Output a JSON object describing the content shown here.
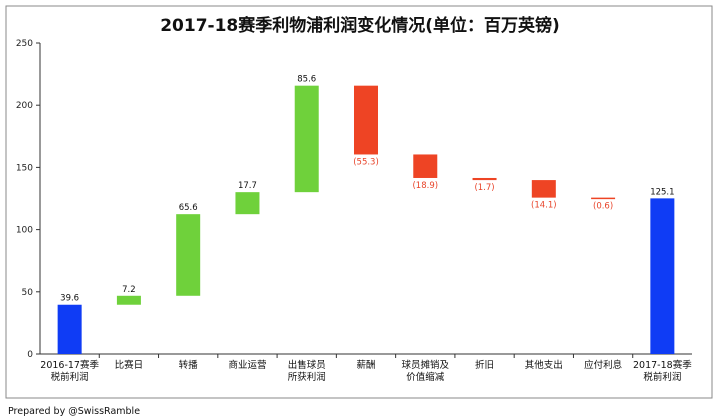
{
  "chart_data": {
    "type": "waterfall",
    "title": "2017-18赛季利物浦利润变化情况(单位：百万英镑)",
    "xlabel": "",
    "ylabel": "",
    "ylim": [
      0,
      250
    ],
    "yticks": [
      0,
      50,
      100,
      150,
      200,
      250
    ],
    "grid": false,
    "legend": "none",
    "colors": {
      "total": "#0f3cf5",
      "increase": "#6fd13b",
      "decrease": "#ee4424"
    },
    "categories": [
      [
        "2016-17赛季",
        "税前利润"
      ],
      [
        "比赛日"
      ],
      [
        "转播"
      ],
      [
        "商业运营"
      ],
      [
        "出售球员",
        "所获利润"
      ],
      [
        "薪酬"
      ],
      [
        "球员摊销及",
        "价值缩减"
      ],
      [
        "折旧"
      ],
      [
        "其他支出"
      ],
      [
        "应付利息"
      ],
      [
        "2017-18赛季",
        "税前利润"
      ]
    ],
    "values": [
      39.6,
      7.2,
      65.6,
      17.7,
      85.6,
      -55.3,
      -18.9,
      -1.7,
      -14.1,
      -0.6,
      125.1
    ],
    "kinds": [
      "total",
      "increase",
      "increase",
      "increase",
      "increase",
      "decrease",
      "decrease",
      "decrease",
      "decrease",
      "decrease",
      "total"
    ],
    "data_labels": [
      "39.6",
      "7.2",
      "65.6",
      "17.7",
      "85.6",
      "(55.3)",
      "(18.9)",
      "(1.7)",
      "(14.1)",
      "(0.6)",
      "125.1"
    ]
  },
  "footer": {
    "credit": "Prepared by @SwissRamble"
  }
}
